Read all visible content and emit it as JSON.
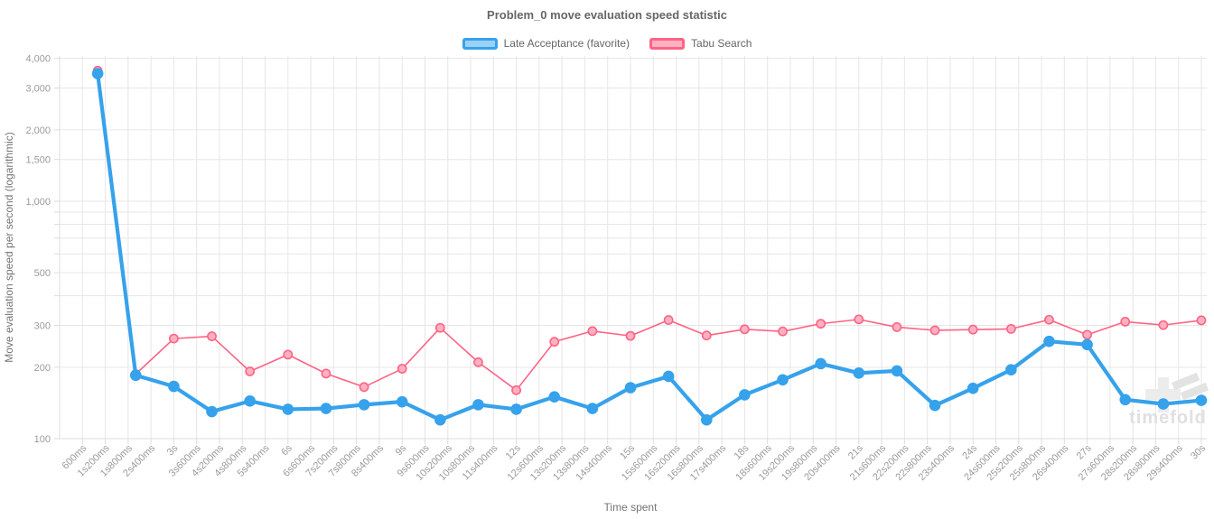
{
  "page": {
    "title": "Problem_0 move evaluation speed statistic",
    "watermark_text": "timefold"
  },
  "legend": {
    "items": [
      {
        "label": "Late Acceptance (favorite)",
        "line_color": "#36a2eb",
        "fill_color": "#9bd1f5"
      },
      {
        "label": "Tabu Search",
        "line_color": "#ff6384",
        "fill_color": "#ffb1c2"
      }
    ]
  },
  "chart_data": {
    "type": "line",
    "title": "Problem_0 move evaluation speed statistic",
    "xlabel": "Time spent",
    "ylabel": "Move evaluation speed per second (logarithmic)",
    "x_scale": "linear-time-seconds",
    "y_scale": "log",
    "grid": true,
    "legend_position": "top",
    "x_range_seconds": [
      0,
      30
    ],
    "y_range": [
      100,
      4300
    ],
    "x_tick_interval_seconds": 0.6,
    "x_tick_labels": [
      "600ms",
      "1s200ms",
      "1s800ms",
      "2s400ms",
      "3s",
      "3s600ms",
      "4s200ms",
      "4s800ms",
      "5s400ms",
      "6s",
      "6s600ms",
      "7s200ms",
      "7s800ms",
      "8s400ms",
      "9s",
      "9s600ms",
      "10s200ms",
      "10s800ms",
      "11s400ms",
      "12s",
      "12s600ms",
      "13s200ms",
      "13s800ms",
      "14s400ms",
      "15s",
      "15s600ms",
      "16s200ms",
      "16s800ms",
      "17s400ms",
      "18s",
      "18s600ms",
      "19s200ms",
      "19s800ms",
      "20s400ms",
      "21s",
      "21s600ms",
      "22s200ms",
      "22s800ms",
      "23s400ms",
      "24s",
      "24s600ms",
      "25s200ms",
      "25s800ms",
      "26s400ms",
      "27s",
      "27s600ms",
      "28s200ms",
      "28s800ms",
      "29s400ms",
      "30s"
    ],
    "y_ticks": [
      {
        "v": 4000,
        "label": "4,000"
      },
      {
        "v": 3000,
        "label": "3,000"
      },
      {
        "v": 2000,
        "label": "2,000"
      },
      {
        "v": 1500,
        "label": "1,500"
      },
      {
        "v": 1000,
        "label": "1,000"
      },
      {
        "v": 900
      },
      {
        "v": 800
      },
      {
        "v": 700
      },
      {
        "v": 600
      },
      {
        "v": 500,
        "label": "500"
      },
      {
        "v": 400
      },
      {
        "v": 300,
        "label": "300"
      },
      {
        "v": 200,
        "label": "200"
      },
      {
        "v": 100,
        "label": "100"
      }
    ],
    "x_seconds": [
      1,
      2,
      3,
      4,
      5,
      6,
      7,
      8,
      9,
      10,
      11,
      12,
      13,
      14,
      15,
      16,
      17,
      18,
      19,
      20,
      21,
      22,
      23,
      24,
      25,
      26,
      27,
      28,
      29,
      30
    ],
    "series": [
      {
        "name": "Late Acceptance (favorite)",
        "color": "#36a2eb",
        "point_fill": "#36a2eb",
        "line_width": 4.2,
        "point_radius": 6.3,
        "point_border_width": 0,
        "values": [
          3450,
          185,
          166,
          130,
          144,
          133,
          134,
          139,
          143,
          120,
          139,
          133,
          150,
          134,
          164,
          183,
          120,
          153,
          177,
          207,
          189,
          193,
          138,
          163,
          195,
          257,
          249,
          146,
          140,
          145
        ]
      },
      {
        "name": "Tabu Search",
        "color": "#ff6384",
        "point_fill": "#ffb1c2",
        "line_width": 1.6,
        "point_radius": 4.6,
        "point_border_width": 1.6,
        "values": [
          3550,
          187,
          264,
          270,
          192,
          226,
          188,
          165,
          197,
          293,
          210,
          160,
          256,
          284,
          271,
          316,
          272,
          289,
          283,
          305,
          318,
          295,
          286,
          288,
          290,
          317,
          274,
          311,
          301,
          315
        ]
      }
    ],
    "colors": {
      "grid": "#e6e6e6",
      "axis_border": "#dcdcdc",
      "tick_text": "#9b9b9b",
      "axis_title_text": "#757575",
      "title_text": "#666666",
      "watermark": "#e0e0e0"
    }
  }
}
